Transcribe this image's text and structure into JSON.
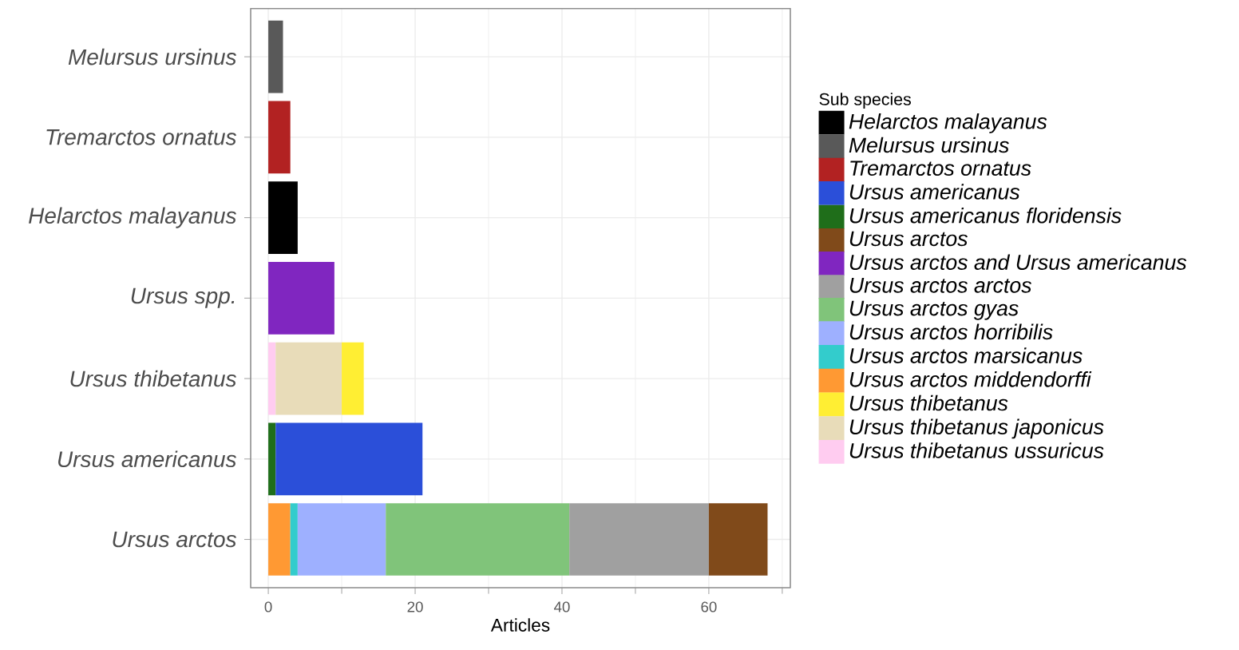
{
  "chart_data": {
    "type": "bar",
    "orientation": "horizontal",
    "stacked": true,
    "xlabel": "Articles",
    "legend_title": "Sub species",
    "legend": "right",
    "grid": true,
    "categories": [
      "Melursus ursinus",
      "Tremarctos ornatus",
      "Helarctos malayanus",
      "Ursus spp.",
      "Ursus thibetanus",
      "Ursus americanus",
      "Ursus arctos"
    ],
    "xlim": [
      -2.4,
      71.1
    ],
    "xticks": [
      0,
      20,
      40,
      60
    ],
    "series": [
      {
        "name": "Ursus thibetanus ussuricus",
        "color": "#ffccf0",
        "values": [
          null,
          null,
          null,
          null,
          1,
          null,
          null
        ]
      },
      {
        "name": "Ursus thibetanus japonicus",
        "color": "#e8dcb9",
        "values": [
          null,
          null,
          null,
          null,
          9,
          null,
          null
        ]
      },
      {
        "name": "Ursus thibetanus",
        "color": "#ffee33",
        "values": [
          null,
          null,
          null,
          null,
          3,
          null,
          null
        ]
      },
      {
        "name": "Ursus arctos middendorffi",
        "color": "#ff9933",
        "values": [
          null,
          null,
          null,
          null,
          null,
          null,
          3
        ]
      },
      {
        "name": "Ursus arctos marsicanus",
        "color": "#33cccc",
        "values": [
          null,
          null,
          null,
          null,
          null,
          null,
          1
        ]
      },
      {
        "name": "Ursus arctos horribilis",
        "color": "#9eb0ff",
        "values": [
          null,
          null,
          null,
          null,
          null,
          null,
          12
        ]
      },
      {
        "name": "Ursus arctos gyas",
        "color": "#80c47a",
        "values": [
          null,
          null,
          null,
          null,
          null,
          null,
          25
        ]
      },
      {
        "name": "Ursus arctos arctos",
        "color": "#a0a0a0",
        "values": [
          null,
          null,
          null,
          null,
          null,
          null,
          19
        ]
      },
      {
        "name": "Ursus arctos and Ursus americanus",
        "color": "#8026c0",
        "values": [
          null,
          null,
          null,
          9,
          null,
          null,
          null
        ]
      },
      {
        "name": "Ursus arctos",
        "color": "#804a1a",
        "values": [
          null,
          null,
          null,
          null,
          null,
          null,
          8
        ]
      },
      {
        "name": "Ursus americanus floridensis",
        "color": "#1f6e1a",
        "values": [
          null,
          null,
          null,
          null,
          null,
          1,
          null
        ]
      },
      {
        "name": "Ursus americanus",
        "color": "#2b4fd9",
        "values": [
          null,
          null,
          null,
          null,
          null,
          20,
          null
        ]
      },
      {
        "name": "Tremarctos ornatus",
        "color": "#b22222",
        "values": [
          null,
          3,
          null,
          null,
          null,
          null,
          null
        ]
      },
      {
        "name": "Melursus ursinus",
        "color": "#595959",
        "values": [
          2,
          null,
          null,
          null,
          null,
          null,
          null
        ]
      },
      {
        "name": "Helarctos malayanus",
        "color": "#000000",
        "values": [
          null,
          null,
          4,
          null,
          null,
          null,
          null
        ]
      }
    ]
  }
}
